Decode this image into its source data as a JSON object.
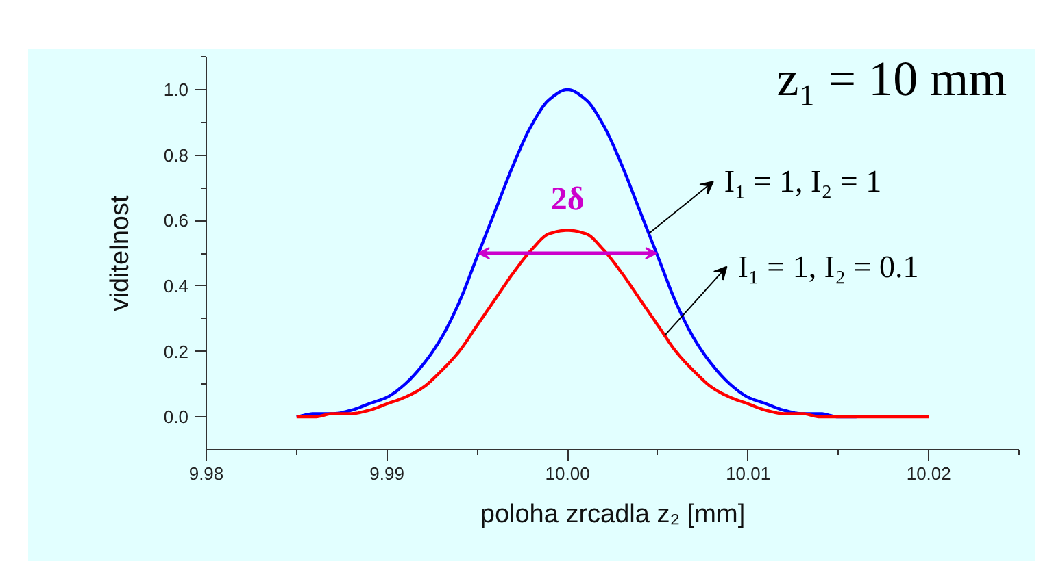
{
  "chart_data": {
    "type": "line",
    "xlabel": "poloha zrcadla z₂ [mm]",
    "ylabel": "viditelnost",
    "x": [
      9.985,
      9.986,
      9.987,
      9.988,
      9.989,
      9.99,
      9.991,
      9.992,
      9.993,
      9.994,
      9.995,
      9.996,
      9.997,
      9.998,
      9.999,
      10.0,
      10.001,
      10.002,
      10.003,
      10.004,
      10.005,
      10.006,
      10.007,
      10.008,
      10.009,
      10.01,
      10.011,
      10.012,
      10.013,
      10.014,
      10.015,
      10.016,
      10.017,
      10.018,
      10.019,
      10.02
    ],
    "series": [
      {
        "color": "#0000ff",
        "values": [
          0,
          0.01,
          0.01,
          0.02,
          0.04,
          0.06,
          0.1,
          0.16,
          0.24,
          0.35,
          0.49,
          0.63,
          0.77,
          0.89,
          0.97,
          1.0,
          0.97,
          0.89,
          0.77,
          0.63,
          0.49,
          0.35,
          0.24,
          0.16,
          0.1,
          0.06,
          0.04,
          0.02,
          0.01,
          0.01,
          0,
          0,
          null,
          null,
          null,
          null
        ]
      },
      {
        "color": "#ff0000",
        "values": [
          0,
          0,
          0.01,
          0.01,
          0.02,
          0.04,
          0.06,
          0.09,
          0.14,
          0.2,
          0.28,
          0.36,
          0.44,
          0.51,
          0.56,
          0.57,
          0.56,
          0.51,
          0.44,
          0.36,
          0.28,
          0.2,
          0.14,
          0.09,
          0.06,
          0.04,
          0.02,
          0.01,
          0.01,
          0,
          0,
          0,
          0,
          0,
          0,
          0
        ]
      }
    ],
    "xlim": [
      9.98,
      10.025
    ],
    "ylim": [
      -0.1,
      1.1
    ],
    "xticks": [
      9.98,
      {
        "value": 9.985,
        "label": null
      },
      9.99,
      {
        "value": 9.995,
        "label": null
      },
      {
        "value": 10.0,
        "label": "10.00"
      },
      {
        "value": 10.005,
        "label": null
      },
      10.01,
      {
        "value": 10.015,
        "label": null
      },
      10.02,
      {
        "value": 10.025,
        "label": null
      }
    ],
    "yticks": [
      {
        "value": 0,
        "label": "0.0"
      },
      {
        "value": 0.1,
        "label": null
      },
      0.2,
      {
        "value": 0.3,
        "label": null
      },
      0.4,
      {
        "value": 0.5,
        "label": null
      },
      0.6,
      {
        "value": 0.7,
        "label": null
      },
      0.8,
      {
        "value": 0.9,
        "label": null
      },
      {
        "value": 1.0,
        "label": "1.0"
      },
      {
        "value": 1.1,
        "label": null
      }
    ],
    "grid": false,
    "annotations": [
      "z₁ = 10 mm",
      "2δ",
      {
        "text": "I₁ = 1, I₂ = 1",
        "x": 10.0045,
        "y": 0.56
      },
      {
        "text": "I₁ = 1, I₂ = 0.1",
        "x": 10.0054,
        "y": 0.25
      }
    ]
  }
}
